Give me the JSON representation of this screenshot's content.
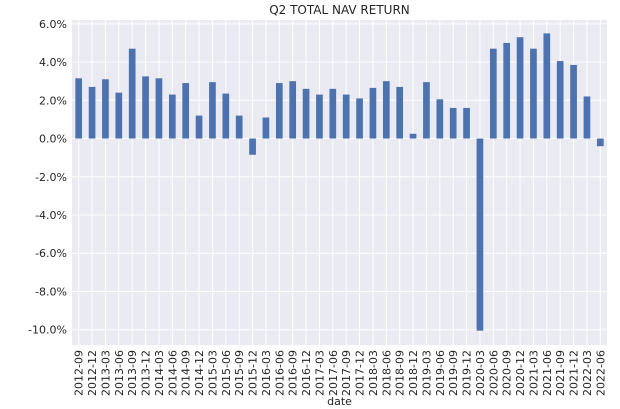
{
  "chart_data": {
    "type": "bar",
    "title": "Q2 TOTAL NAV RETURN",
    "xlabel": "date",
    "ylabel": "",
    "ylim": [
      -10.8,
      6.2
    ],
    "yticks": [
      6.0,
      4.0,
      2.0,
      0.0,
      -2.0,
      -4.0,
      -6.0,
      -8.0,
      -10.0
    ],
    "ytick_labels": [
      "6.0%",
      "4.0%",
      "2.0%",
      "0.0%",
      "-2.0%",
      "-4.0%",
      "-6.0%",
      "-8.0%",
      "-10.0%"
    ],
    "grid": true,
    "legend": "none",
    "bar_color": "#4c72b0",
    "background_color": "#eaeaf2",
    "grid_color": "#ffffff",
    "categories": [
      "2012-09",
      "2012-12",
      "2013-03",
      "2013-06",
      "2013-09",
      "2013-12",
      "2014-03",
      "2014-06",
      "2014-09",
      "2014-12",
      "2015-03",
      "2015-06",
      "2015-09",
      "2015-12",
      "2016-03",
      "2016-06",
      "2016-09",
      "2016-12",
      "2017-03",
      "2017-06",
      "2017-09",
      "2017-12",
      "2018-03",
      "2018-06",
      "2018-09",
      "2018-12",
      "2019-03",
      "2019-06",
      "2019-09",
      "2019-12",
      "2020-03",
      "2020-06",
      "2020-09",
      "2020-12",
      "2021-03",
      "2021-06",
      "2021-09",
      "2021-12",
      "2022-03",
      "2022-06"
    ],
    "values": [
      3.15,
      2.7,
      3.1,
      2.4,
      4.7,
      3.25,
      3.15,
      2.3,
      2.9,
      1.2,
      2.95,
      2.35,
      1.2,
      -0.85,
      1.1,
      2.9,
      3.0,
      2.6,
      2.3,
      2.6,
      2.3,
      2.1,
      2.65,
      3.0,
      2.7,
      0.25,
      2.95,
      2.05,
      1.6,
      1.6,
      -10.05,
      4.7,
      5.0,
      5.3,
      4.7,
      5.5,
      4.05,
      3.85,
      2.2,
      -0.4
    ]
  }
}
